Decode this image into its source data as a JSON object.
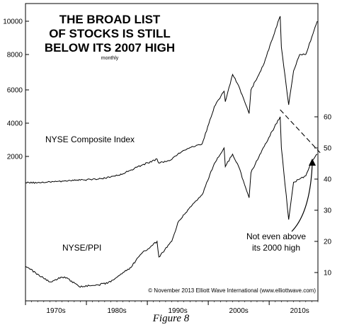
{
  "caption": "Figure 8",
  "chart_data": {
    "type": "line",
    "title_lines": [
      "THE BROAD LIST",
      "OF STOCKS IS STILL",
      "BELOW ITS 2007 HIGH"
    ],
    "subtitle": "monthly",
    "copyright": "© November 2013 Elliott Wave International (www.elliottwave.com)",
    "annotations": {
      "nyse_label": "NYSE Composite Index",
      "ppi_label": "NYSE/PPI",
      "note_line1": "Not even above",
      "note_line2": "its 2000 high"
    },
    "x_ticks": [
      "1970s",
      "1980s",
      "1990s",
      "2000s",
      "2010s"
    ],
    "left_axis": {
      "ticks": [
        "2000",
        "4000",
        "6000",
        "8000",
        "10000"
      ],
      "scale": "log"
    },
    "right_axis": {
      "ticks": [
        "10",
        "20",
        "30",
        "40",
        "50",
        "60"
      ]
    },
    "series": [
      {
        "name": "NYSE Composite Index",
        "x": [
          1966,
          1968,
          1969,
          1970,
          1972,
          1973,
          1975,
          1978,
          1980,
          1982,
          1983,
          1985,
          1987.6,
          1987.9,
          1990,
          1991,
          1993,
          1995,
          1997,
          1998.6,
          1998.8,
          2000,
          2001,
          2002.7,
          2003,
          2005,
          2007.8,
          2008,
          2009.2,
          2010,
          2011,
          2012,
          2013,
          2013.9
        ],
        "y": [
          400,
          400,
          395,
          420,
          440,
          450,
          465,
          500,
          570,
          690,
          830,
          1150,
          1700,
          1330,
          1650,
          2100,
          2400,
          2600,
          4900,
          5900,
          5200,
          6800,
          6200,
          4500,
          6000,
          7300,
          10300,
          8400,
          5000,
          7000,
          8000,
          8000,
          9000,
          10000
        ]
      },
      {
        "name": "NYSE/PPI",
        "x": [
          1966,
          1968,
          1970,
          1972,
          1973,
          1974.8,
          1978,
          1980,
          1982,
          1983,
          1985,
          1987.6,
          1987.9,
          1990,
          1991,
          1993,
          1995,
          1997,
          1998.6,
          1998.8,
          2000,
          2001,
          2002.7,
          2003,
          2005,
          2007.8,
          2008,
          2009.2,
          2010,
          2011,
          2012,
          2013,
          2013.9
        ],
        "y": [
          12,
          9.5,
          7,
          8.5,
          8,
          5.5,
          6,
          7,
          10,
          11,
          16,
          20,
          15,
          20,
          26,
          31,
          35,
          45,
          50,
          44,
          48,
          44,
          34,
          42,
          50,
          60,
          50,
          27,
          39,
          40,
          41,
          46,
          48
        ]
      },
      {
        "name": "trendline",
        "x": [
          2007.8,
          2013.9
        ],
        "y": [
          60,
          48
        ]
      }
    ]
  }
}
